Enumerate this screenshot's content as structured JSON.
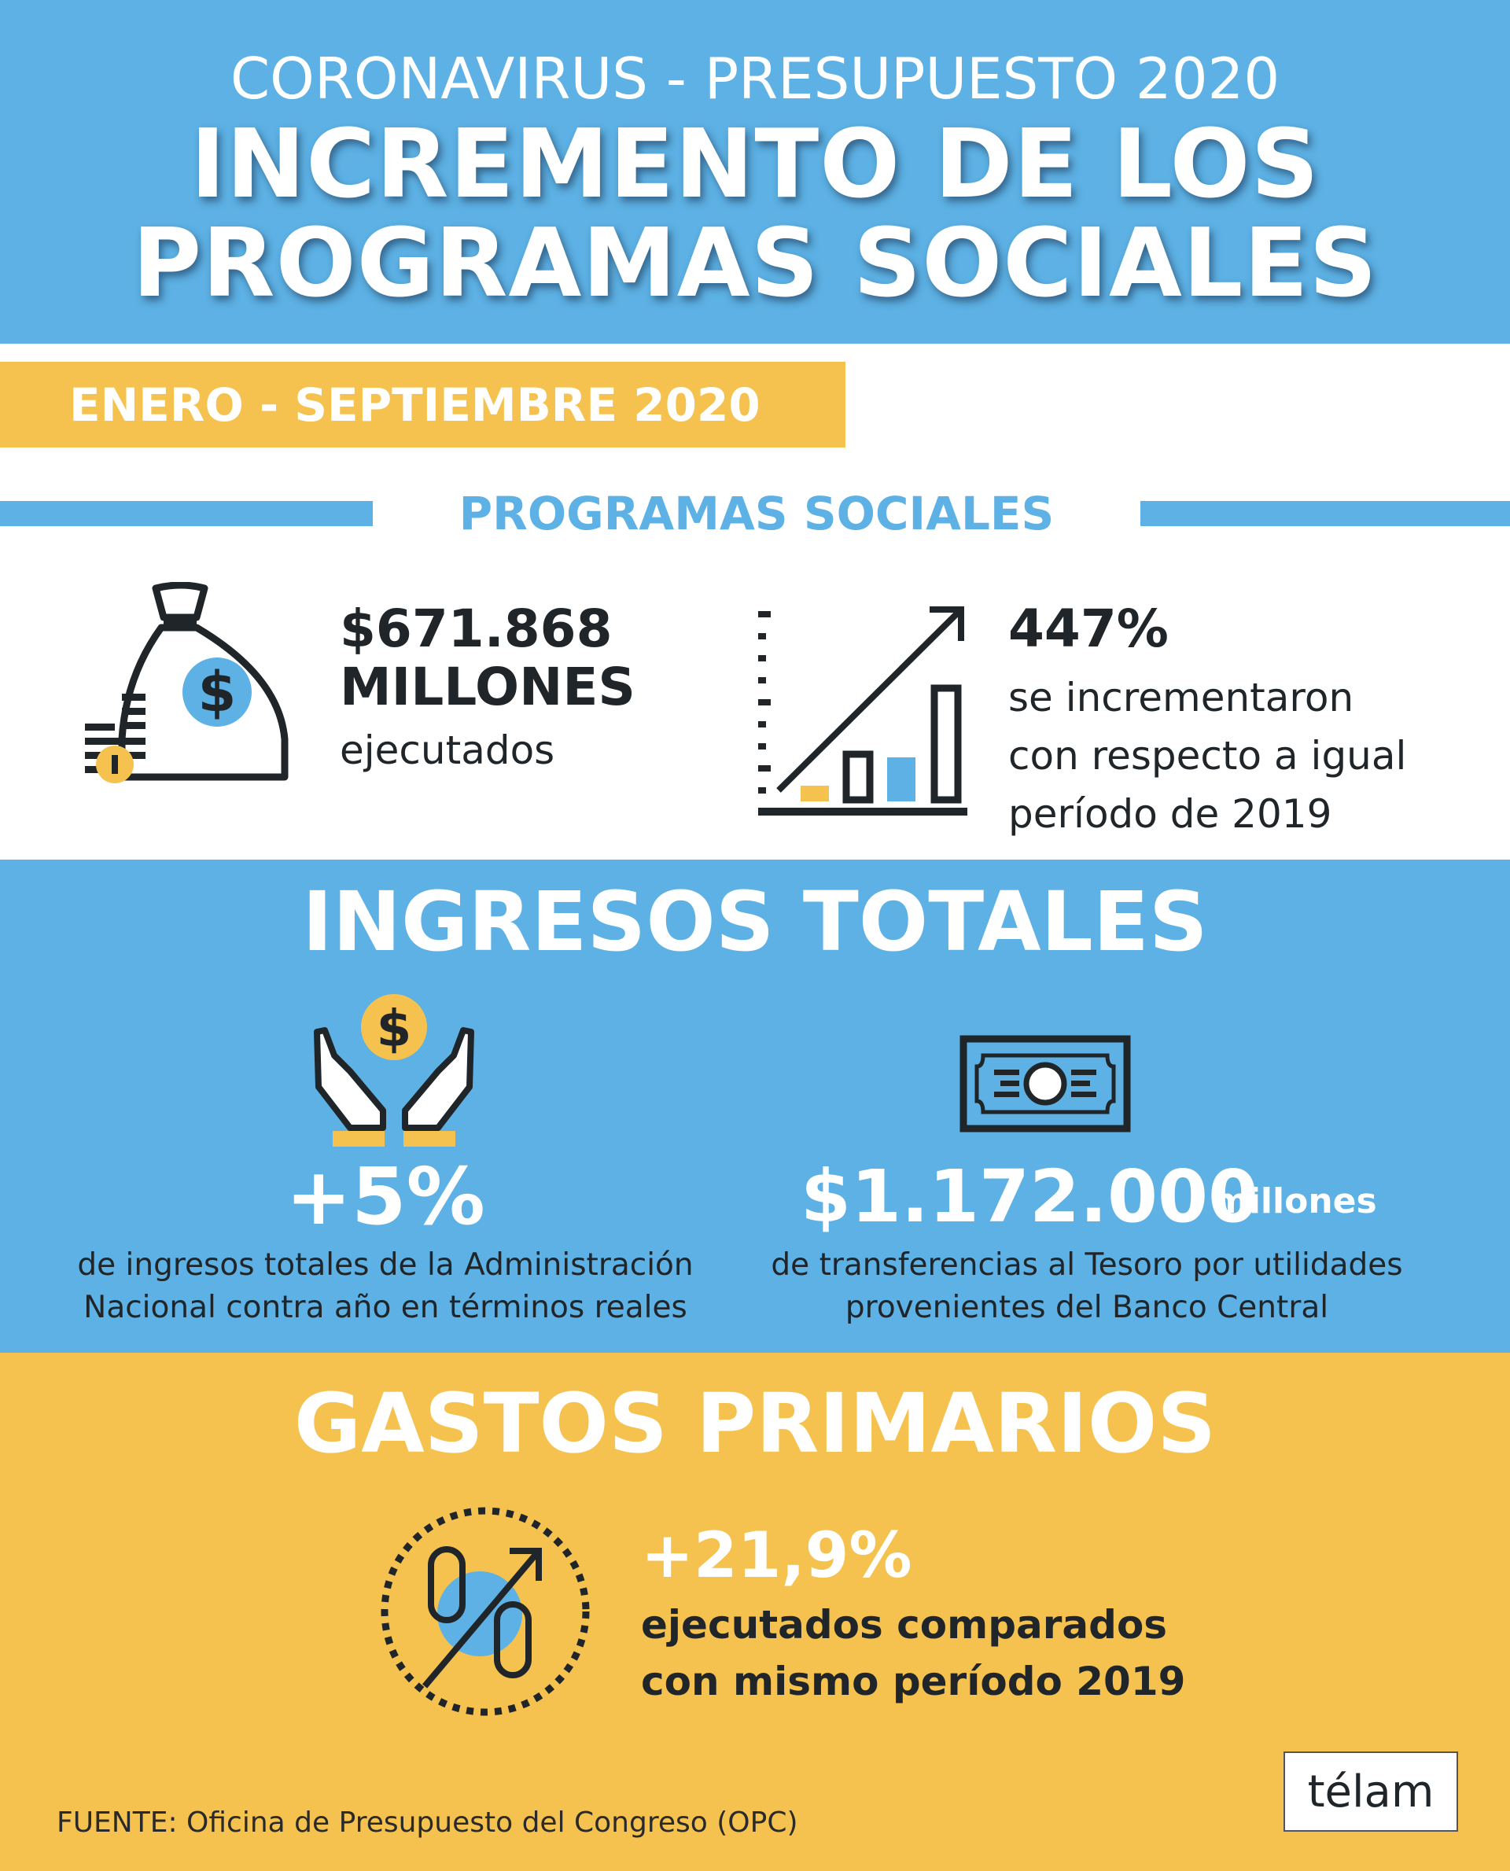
{
  "header": {
    "kicker": "CORONAVIRUS - PRESUPUESTO 2020",
    "title_line1": "INCREMENTO DE LOS",
    "title_line2": "PROGRAMAS SOCIALES"
  },
  "period": "ENERO - SEPTIEMBRE 2020",
  "programas": {
    "heading": "PROGRAMAS SOCIALES",
    "amount": "$671.868",
    "amount_unit": "MILLONES",
    "amount_desc": "ejecutados",
    "amount_icon": "money-bag-icon",
    "growth": "447%",
    "growth_desc": [
      "se incrementaron",
      "con respecto a igual",
      "período de 2019"
    ],
    "growth_icon": "growth-chart-icon"
  },
  "ingresos": {
    "heading": "INGRESOS TOTALES",
    "left_value": "+5%",
    "left_desc": [
      "de ingresos totales de la Administración",
      "Nacional contra año en términos reales"
    ],
    "left_icon": "hands-coin-icon",
    "right_value": "$1.172.000",
    "right_unit": "millones",
    "right_desc": [
      "de transferencias al Tesoro por utilidades",
      "provenientes del Banco Central"
    ],
    "right_icon": "banknote-icon"
  },
  "gastos": {
    "heading": "GASTOS PRIMARIOS",
    "value": "+21,9%",
    "desc": [
      "ejecutados comparados",
      "con mismo período 2019"
    ],
    "icon": "percent-up-icon"
  },
  "footer": {
    "source": "FUENTE:  Oficina de Presupuesto del Congreso (OPC)",
    "logo": "télam"
  },
  "colors": {
    "blue": "#5db1e4",
    "yellow": "#f6c24f",
    "dark": "#1f2529"
  }
}
